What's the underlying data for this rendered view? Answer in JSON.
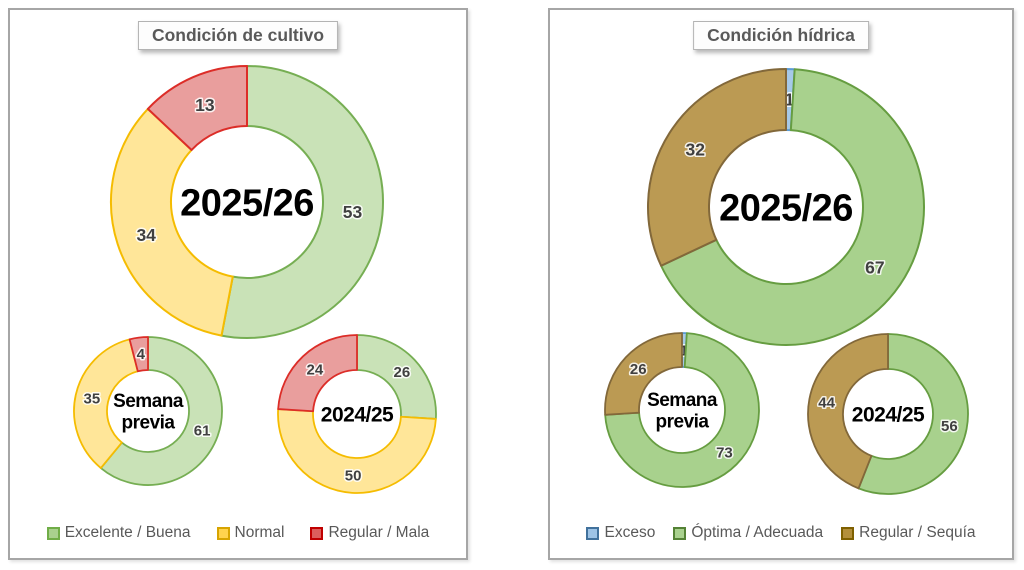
{
  "page": {
    "background": "#ffffff"
  },
  "chart_data": [
    {
      "type": "donut",
      "panel": "left",
      "title": "Condición de cultivo",
      "value_label_color": "#404040",
      "legend_position": "bottom",
      "legend": [
        {
          "label": "Excelente / Buena",
          "fill": "#c9e2b7",
          "stroke": "#76ae53",
          "swatch_fill": "#a9d18e",
          "swatch_stroke": "#70ad47"
        },
        {
          "label": "Normal",
          "fill": "#ffe699",
          "stroke": "#f5bc01",
          "swatch_fill": "#ffd34d",
          "swatch_stroke": "#d7a400"
        },
        {
          "label": "Regular / Mala",
          "fill": "#e99e9d",
          "stroke": "#dc2d28",
          "swatch_fill": "#dd5f5c",
          "swatch_stroke": "#c00000"
        }
      ],
      "donuts": [
        {
          "center_label": "2025/26",
          "slices": [
            {
              "category": "Excelente / Buena",
              "value": 53
            },
            {
              "category": "Normal",
              "value": 34
            },
            {
              "category": "Regular / Mala",
              "value": 13
            }
          ]
        },
        {
          "center_label": "Semana\nprevia",
          "slices": [
            {
              "category": "Excelente / Buena",
              "value": 61
            },
            {
              "category": "Normal",
              "value": 35
            },
            {
              "category": "Regular / Mala",
              "value": 4
            }
          ]
        },
        {
          "center_label": "2024/25",
          "slices": [
            {
              "category": "Excelente / Buena",
              "value": 26
            },
            {
              "category": "Normal",
              "value": 50
            },
            {
              "category": "Regular / Mala",
              "value": 24
            }
          ]
        }
      ]
    },
    {
      "type": "donut",
      "panel": "right",
      "title": "Condición hídrica",
      "value_label_color": "#404040",
      "legend_position": "bottom",
      "legend": [
        {
          "label": "Exceso",
          "fill": "#a6c9e8",
          "stroke": "#5b9bd5",
          "swatch_fill": "#9dc3e6",
          "swatch_stroke": "#41719c"
        },
        {
          "label": "Óptima / Adecuada",
          "fill": "#a8d18d",
          "stroke": "#669d41",
          "swatch_fill": "#a9d18e",
          "swatch_stroke": "#548235"
        },
        {
          "label": "Regular / Sequía",
          "fill": "#bb9a53",
          "stroke": "#82683a",
          "swatch_fill": "#b38f3b",
          "swatch_stroke": "#7f6000"
        }
      ],
      "donuts": [
        {
          "center_label": "2025/26",
          "slices": [
            {
              "category": "Exceso",
              "value": 1
            },
            {
              "category": "Óptima / Adecuada",
              "value": 67
            },
            {
              "category": "Regular / Sequía",
              "value": 32
            }
          ]
        },
        {
          "center_label": "Semana\nprevia",
          "slices": [
            {
              "category": "Exceso",
              "value": 1
            },
            {
              "category": "Óptima / Adecuada",
              "value": 73
            },
            {
              "category": "Regular / Sequía",
              "value": 26
            }
          ]
        },
        {
          "center_label": "2024/25",
          "slices": [
            {
              "category": "Óptima / Adecuada",
              "value": 56
            },
            {
              "category": "Regular / Sequía",
              "value": 44
            }
          ]
        }
      ]
    }
  ]
}
